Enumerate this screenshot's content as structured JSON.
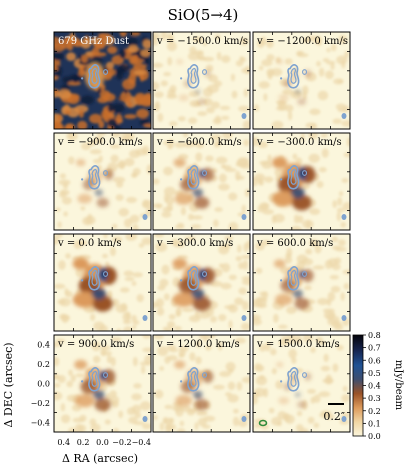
{
  "title": "SiO(5→4)",
  "colorbar": {
    "label": "mJy/beam",
    "ticks": [
      "0.0",
      "0.1",
      "0.2",
      "0.3",
      "0.4",
      "0.5",
      "0.6",
      "0.7",
      "0.8"
    ],
    "range": [
      0.0,
      0.8
    ],
    "colormap": [
      "#fbf6dc",
      "#f1d6a4",
      "#dc9a5c",
      "#9a5228",
      "#3f4e6e",
      "#1f5294",
      "#15214a",
      "#04040a"
    ]
  },
  "axes": {
    "xlabel": "Δ RA (arcsec)",
    "ylabel": "Δ DEC (arcsec)",
    "xticks": [
      "0.4",
      "0.2",
      "0.0",
      "−0.2",
      "−0.4"
    ],
    "yticks": [
      "0.4",
      "0.2",
      "0.0",
      "−0.2",
      "−0.4"
    ],
    "range_arcsec": [
      -0.5,
      0.5
    ]
  },
  "contour_color": "#7fa3cf",
  "scalebar_label": "0.2″",
  "panels": [
    {
      "label": "679 GHz Dust",
      "velocity": null,
      "emission": 0.0
    },
    {
      "label": "v = −1500.0 km/s",
      "velocity": -1500,
      "emission": 0.05
    },
    {
      "label": "v = −1200.0 km/s",
      "velocity": -1200,
      "emission": 0.08
    },
    {
      "label": "v = −900.0 km/s",
      "velocity": -900,
      "emission": 0.35
    },
    {
      "label": "v = −600.0 km/s",
      "velocity": -600,
      "emission": 0.6
    },
    {
      "label": "v = −300.0 km/s",
      "velocity": -300,
      "emission": 0.95
    },
    {
      "label": "v = 0.0 km/s",
      "velocity": 0,
      "emission": 1.0
    },
    {
      "label": "v = 300.0 km/s",
      "velocity": 300,
      "emission": 0.85
    },
    {
      "label": "v = 600.0 km/s",
      "velocity": 600,
      "emission": 0.55
    },
    {
      "label": "v = 900.0 km/s",
      "velocity": 900,
      "emission": 0.7
    },
    {
      "label": "v = 1200.0 km/s",
      "velocity": 1200,
      "emission": 0.5
    },
    {
      "label": "v = 1500.0 km/s",
      "velocity": 1500,
      "emission": 0.1
    }
  ]
}
